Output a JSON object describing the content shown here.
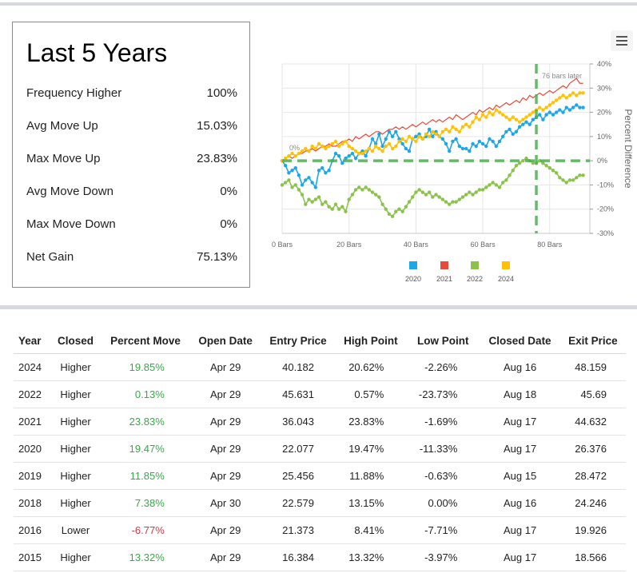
{
  "summary": {
    "title": "Last 5 Years",
    "rows": [
      {
        "label": "Frequency Higher",
        "value": "100%"
      },
      {
        "label": "Avg Move Up",
        "value": "15.03%"
      },
      {
        "label": "Max Move Up",
        "value": "23.83%"
      },
      {
        "label": "Avg Move Down",
        "value": "0%"
      },
      {
        "label": "Max Move Down",
        "value": "0%"
      },
      {
        "label": "Net Gain",
        "value": "75.13%"
      }
    ]
  },
  "menu": {
    "icon": "hamburger-menu-icon"
  },
  "chart_data": {
    "type": "line",
    "ylabel": "Percent Difference",
    "xlim": [
      0,
      92
    ],
    "ylim": [
      -30,
      40
    ],
    "x_ticks": [
      0,
      20,
      40,
      60,
      80
    ],
    "x_tick_labels": [
      "0 Bars",
      "20 Bars",
      "40 Bars",
      "60 Bars",
      "80 Bars"
    ],
    "y_ticks": [
      -30,
      -20,
      -10,
      0,
      10,
      20,
      30,
      40
    ],
    "y_tick_labels": [
      "-30%",
      "-20%",
      "-10%",
      "0%",
      "10%",
      "20%",
      "30%",
      "40%"
    ],
    "grid": true,
    "legend_position": "bottom",
    "annotations": {
      "zero_label": "0%",
      "vline_label": "76 bars later",
      "vline_x": 76,
      "hline_y": 0
    },
    "series": [
      {
        "name": "2020",
        "color": "#1ea7e8",
        "values": [
          0,
          -2,
          -5,
          -4,
          -3,
          -6,
          -10,
          -8,
          -7,
          -9,
          -11,
          -4,
          -3,
          -5,
          -4,
          0,
          3,
          2,
          -1,
          1,
          2,
          3,
          1,
          3,
          4,
          2,
          5,
          9,
          7,
          11,
          6,
          9,
          12,
          10,
          12,
          9,
          7,
          5,
          4,
          9,
          10,
          11,
          9,
          10,
          13,
          10,
          12,
          10,
          9,
          7,
          4,
          8,
          9,
          6,
          5,
          5,
          4,
          7,
          6,
          8,
          7,
          6,
          9,
          8,
          6,
          8,
          10,
          12,
          13,
          11,
          12,
          14,
          15,
          16,
          15,
          17,
          18,
          19,
          17,
          19,
          20,
          19,
          20,
          21,
          20,
          22,
          21,
          22,
          23,
          22,
          22
        ]
      },
      {
        "name": "2021",
        "color": "#e84a3a",
        "values": [
          0,
          1,
          2,
          1,
          2,
          3,
          3,
          4,
          4,
          5,
          4,
          5,
          6,
          6,
          7,
          6,
          6,
          7,
          8,
          8,
          9,
          8,
          10,
          9,
          10,
          11,
          10,
          11,
          12,
          12,
          11,
          12,
          13,
          13,
          14,
          13,
          14,
          13,
          14,
          15,
          14,
          15,
          16,
          15,
          16,
          17,
          16,
          17,
          16,
          17,
          18,
          17,
          19,
          18,
          17,
          18,
          19,
          20,
          19,
          21,
          20,
          21,
          22,
          21,
          23,
          22,
          23,
          24,
          23,
          24,
          25,
          24,
          26,
          25,
          27,
          26,
          27,
          28,
          27,
          28,
          29,
          28,
          29,
          30,
          31,
          30,
          32,
          33,
          34,
          32,
          32
        ]
      },
      {
        "name": "2022",
        "color": "#8bc34a",
        "values": [
          -10,
          -9,
          -8,
          -11,
          -10,
          -12,
          -14,
          -18,
          -16,
          -17,
          -16,
          -15,
          -18,
          -17,
          -19,
          -20,
          -18,
          -20,
          -19,
          -21,
          -16,
          -14,
          -12,
          -11,
          -12,
          -11,
          -12,
          -13,
          -14,
          -15,
          -18,
          -20,
          -22,
          -23,
          -21,
          -20,
          -21,
          -19,
          -17,
          -15,
          -13,
          -12,
          -13,
          -14,
          -13,
          -15,
          -14,
          -15,
          -16,
          -17,
          -18,
          -17,
          -17,
          -16,
          -15,
          -14,
          -13,
          -14,
          -13,
          -12,
          -12,
          -11,
          -10,
          -9,
          -10,
          -11,
          -9,
          -8,
          -6,
          -4,
          -2,
          -1,
          0,
          1,
          0,
          -1,
          -1,
          0,
          -1,
          -2,
          -3,
          -4,
          -5,
          -7,
          -8,
          -9,
          -8,
          -8,
          -7,
          -6,
          -6
        ]
      },
      {
        "name": "2024",
        "color": "#ffc107",
        "values": [
          0,
          1,
          2,
          3,
          2,
          3,
          4,
          5,
          4,
          6,
          5,
          7,
          6,
          5,
          6,
          7,
          8,
          6,
          7,
          8,
          6,
          5,
          4,
          3,
          3,
          4,
          5,
          4,
          6,
          5,
          4,
          6,
          7,
          5,
          6,
          8,
          9,
          8,
          10,
          9,
          8,
          10,
          9,
          11,
          10,
          12,
          11,
          10,
          12,
          13,
          12,
          14,
          13,
          12,
          14,
          15,
          14,
          16,
          18,
          17,
          19,
          18,
          20,
          19,
          21,
          20,
          19,
          18,
          17,
          18,
          17,
          16,
          17,
          18,
          19,
          20,
          21,
          22,
          21,
          22,
          23,
          24,
          25,
          26,
          27,
          26,
          27,
          28,
          27,
          28,
          28
        ]
      }
    ]
  },
  "table": {
    "headers": [
      "Year",
      "Closed",
      "Percent Move",
      "Open Date",
      "Entry Price",
      "High Point",
      "Low Point",
      "Closed Date",
      "Exit Price"
    ],
    "rows": [
      [
        "2024",
        "Higher",
        "19.85%",
        "Apr 29",
        "40.182",
        "20.62%",
        "-2.26%",
        "Aug 16",
        "48.159"
      ],
      [
        "2022",
        "Higher",
        "0.13%",
        "Apr 29",
        "45.631",
        "0.57%",
        "-23.73%",
        "Aug 18",
        "45.69"
      ],
      [
        "2021",
        "Higher",
        "23.83%",
        "Apr 29",
        "36.043",
        "23.83%",
        "-1.69%",
        "Aug 17",
        "44.632"
      ],
      [
        "2020",
        "Higher",
        "19.47%",
        "Apr 29",
        "22.077",
        "19.47%",
        "-11.33%",
        "Aug 17",
        "26.376"
      ],
      [
        "2019",
        "Higher",
        "11.85%",
        "Apr 29",
        "25.456",
        "11.88%",
        "-0.63%",
        "Aug 15",
        "28.472"
      ],
      [
        "2018",
        "Higher",
        "7.38%",
        "Apr 30",
        "22.579",
        "13.15%",
        "0.00%",
        "Aug 16",
        "24.246"
      ],
      [
        "2016",
        "Lower",
        "-6.77%",
        "Apr 29",
        "21.373",
        "8.41%",
        "-7.71%",
        "Aug 17",
        "19.926"
      ],
      [
        "2015",
        "Higher",
        "13.32%",
        "Apr 29",
        "16.384",
        "13.32%",
        "-3.97%",
        "Aug 17",
        "18.566"
      ]
    ],
    "move_colors": {
      "positive": "#3ba64a",
      "negative": "#d0384a"
    }
  }
}
